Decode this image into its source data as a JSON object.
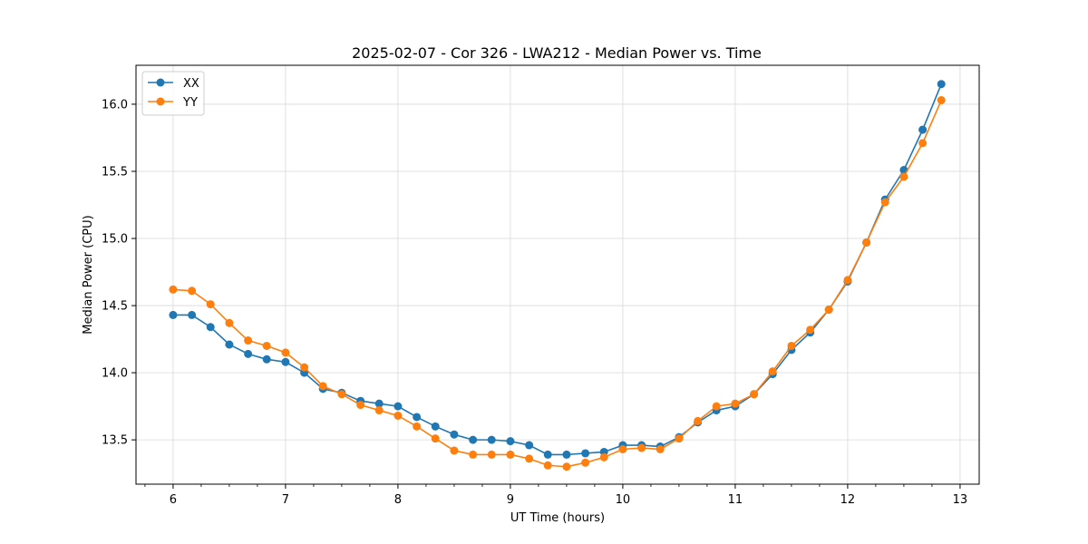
{
  "chart_data": {
    "type": "line",
    "title": "2025-02-07 - Cor 326 - LWA212 - Median Power vs. Time",
    "xlabel": "UT Time (hours)",
    "ylabel": "Median Power (CPU)",
    "xlim": [
      5.67,
      13.17
    ],
    "ylim": [
      13.17,
      16.29
    ],
    "xticks": [
      6,
      7,
      8,
      9,
      10,
      11,
      12,
      13
    ],
    "yticks": [
      13.5,
      14.0,
      14.5,
      15.0,
      15.5,
      16.0
    ],
    "grid": true,
    "legend_position": "top-left",
    "x": [
      6.0,
      6.167,
      6.333,
      6.5,
      6.667,
      6.833,
      7.0,
      7.167,
      7.333,
      7.5,
      7.667,
      7.833,
      8.0,
      8.167,
      8.333,
      8.5,
      8.667,
      8.833,
      9.0,
      9.167,
      9.333,
      9.5,
      9.667,
      9.833,
      10.0,
      10.167,
      10.333,
      10.5,
      10.667,
      10.833,
      11.0,
      11.167,
      11.333,
      11.5,
      11.667,
      11.833,
      12.0,
      12.167,
      12.333,
      12.5,
      12.667,
      12.833
    ],
    "series": [
      {
        "name": "XX",
        "color": "#1f77b4",
        "values": [
          14.43,
          14.43,
          14.34,
          14.21,
          14.14,
          14.1,
          14.08,
          14.0,
          13.88,
          13.85,
          13.79,
          13.77,
          13.75,
          13.67,
          13.6,
          13.54,
          13.5,
          13.5,
          13.49,
          13.46,
          13.39,
          13.39,
          13.4,
          13.41,
          13.46,
          13.46,
          13.45,
          13.52,
          13.63,
          13.72,
          13.75,
          13.84,
          13.99,
          14.17,
          14.3,
          14.47,
          14.68,
          14.97,
          15.29,
          15.51,
          15.81,
          16.15
        ]
      },
      {
        "name": "YY",
        "color": "#ff7f0e",
        "values": [
          14.62,
          14.61,
          14.51,
          14.37,
          14.24,
          14.2,
          14.15,
          14.04,
          13.9,
          13.84,
          13.76,
          13.72,
          13.68,
          13.6,
          13.51,
          13.42,
          13.39,
          13.39,
          13.39,
          13.36,
          13.31,
          13.3,
          13.33,
          13.37,
          13.43,
          13.44,
          13.43,
          13.51,
          13.64,
          13.75,
          13.77,
          13.84,
          14.01,
          14.2,
          14.32,
          14.47,
          14.69,
          14.97,
          15.27,
          15.46,
          15.71,
          16.03
        ]
      }
    ]
  },
  "style": {
    "grid_color": "#d9d9d9",
    "axis_color": "#000000",
    "legend_border_color": "#cccccc"
  }
}
